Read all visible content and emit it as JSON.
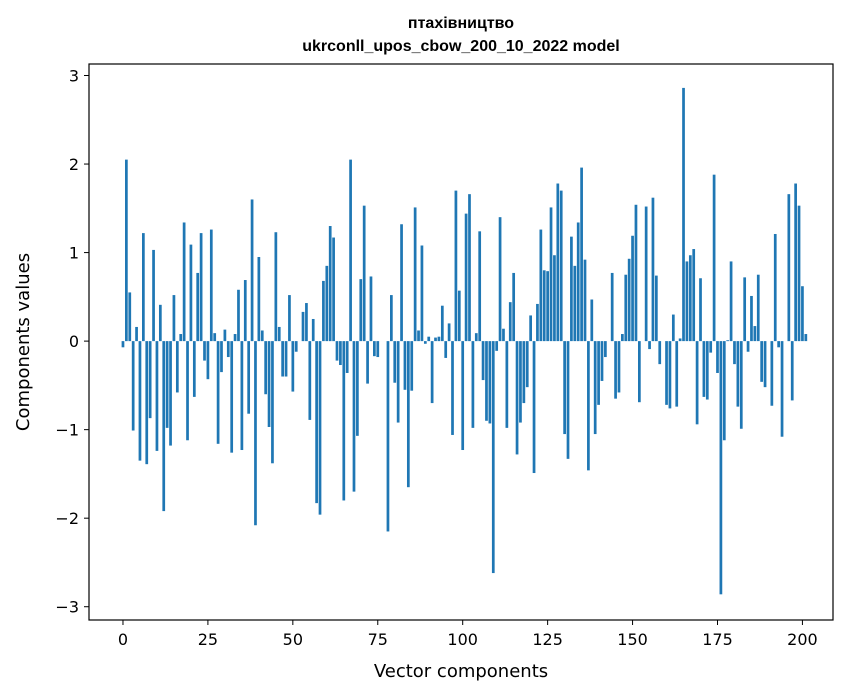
{
  "chart_data": {
    "type": "bar",
    "title": "птахівництво",
    "subtitle": "ukrconll_upos_cbow_200_10_2022 model",
    "xlabel": "Vector components",
    "ylabel": "Components values",
    "xlim": [
      -10,
      209
    ],
    "ylim": [
      -3.15,
      3.13
    ],
    "xticks": [
      0,
      25,
      50,
      75,
      100,
      125,
      150,
      175,
      200
    ],
    "yticks": [
      -3,
      -2,
      -1,
      0,
      1,
      2,
      3
    ],
    "ytick_labels": [
      "−3",
      "−2",
      "−1",
      "0",
      "1",
      "2",
      "3"
    ],
    "bar_color": "#1f77b4",
    "grid": false,
    "values": [
      -0.07,
      2.05,
      0.55,
      -1.01,
      0.16,
      -1.35,
      1.22,
      -1.39,
      -0.87,
      1.03,
      -1.24,
      0.41,
      -1.92,
      -0.98,
      -1.18,
      0.52,
      -0.58,
      0.08,
      1.34,
      -1.12,
      1.09,
      -0.63,
      0.77,
      1.22,
      -0.22,
      -0.43,
      1.26,
      0.09,
      -1.16,
      -0.35,
      0.13,
      -0.18,
      -1.26,
      0.08,
      0.58,
      -1.23,
      0.69,
      -0.82,
      1.6,
      -2.08,
      0.95,
      0.12,
      -0.6,
      -0.97,
      -1.38,
      1.23,
      0.16,
      -0.4,
      -0.4,
      0.52,
      -0.57,
      -0.12,
      0.0,
      0.33,
      0.43,
      -0.89,
      0.25,
      -1.83,
      -1.96,
      0.68,
      0.85,
      1.3,
      1.17,
      -0.22,
      -0.27,
      -1.8,
      -0.36,
      2.05,
      -1.7,
      -1.07,
      0.7,
      1.53,
      -0.48,
      0.73,
      -0.17,
      -0.18,
      0.0,
      0.0,
      -2.15,
      0.52,
      -0.47,
      -0.92,
      1.32,
      -0.55,
      -1.65,
      -0.56,
      1.51,
      0.12,
      1.08,
      -0.03,
      0.05,
      -0.7,
      0.04,
      0.05,
      0.4,
      -0.19,
      0.2,
      -1.06,
      1.7,
      0.57,
      -1.23,
      1.44,
      1.66,
      -0.98,
      0.09,
      1.24,
      -0.44,
      -0.9,
      -0.93,
      -2.62,
      -0.11,
      1.4,
      0.14,
      -0.98,
      0.44,
      0.77,
      -1.28,
      -0.92,
      -0.7,
      -0.52,
      0.29,
      -1.49,
      0.42,
      1.26,
      0.8,
      0.79,
      1.51,
      0.97,
      1.78,
      1.7,
      -1.05,
      -1.33,
      1.18,
      0.85,
      1.34,
      1.96,
      0.92,
      -1.46,
      0.47,
      -1.05,
      -0.72,
      -0.45,
      -0.18,
      0.0,
      0.77,
      -0.65,
      -0.58,
      0.08,
      0.75,
      0.93,
      1.19,
      1.54,
      -0.69,
      0.0,
      1.52,
      -0.09,
      1.62,
      0.74,
      -0.26,
      0.0,
      -0.72,
      -0.76,
      0.3,
      -0.74,
      0.03,
      2.86,
      0.9,
      0.97,
      1.04,
      -0.94,
      0.71,
      -0.63,
      -0.66,
      -0.13,
      1.88,
      -0.36,
      -2.86,
      -1.12,
      0.01,
      0.9,
      -0.26,
      -0.74,
      -0.99,
      0.72,
      -0.12,
      0.51,
      0.17,
      0.75,
      -0.46,
      -0.52,
      0.0,
      -0.73,
      1.21,
      -0.07,
      -1.08,
      0.0,
      1.66,
      -0.67,
      1.78,
      1.53,
      0.62,
      0.08
    ]
  }
}
